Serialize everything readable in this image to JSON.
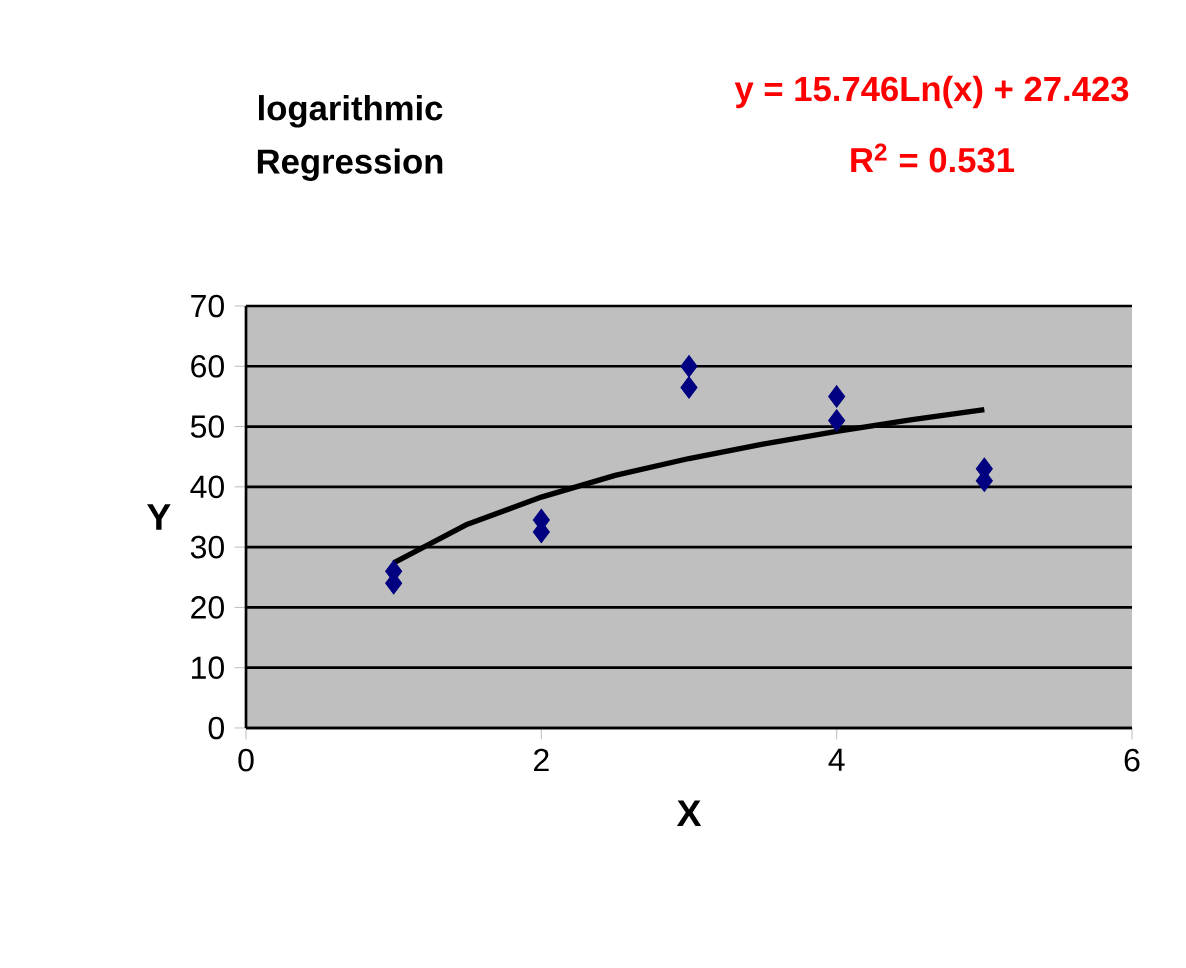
{
  "chart_data": {
    "type": "scatter",
    "title": "logarithmic Regression",
    "xlabel": "X",
    "ylabel": "Y",
    "annotations": [
      "y = 15.746Ln(x) + 27.423",
      "R$^{2}$ = 0.531"
    ],
    "xlim": [
      0,
      6
    ],
    "xticks": [
      0,
      2,
      4,
      6
    ],
    "ylim": [
      0,
      70
    ],
    "yticks": [
      0,
      10,
      20,
      30,
      40,
      50,
      60,
      70
    ],
    "grid": "y",
    "marker": "diamond",
    "series": [
      {
        "type": "scatter",
        "color": "#000080",
        "x": [
          1,
          1,
          2,
          2,
          3,
          3,
          4,
          4,
          5,
          5
        ],
        "values": [
          26,
          24,
          34.5,
          32.5,
          60,
          56.5,
          55,
          51,
          43,
          41
        ]
      },
      {
        "type": "line",
        "color": "#000000",
        "marker": "none",
        "x": [
          1,
          1.5,
          2,
          2.5,
          3,
          3.5,
          4,
          4.5,
          5
        ],
        "values": [
          27.4,
          33.8,
          38.3,
          41.9,
          44.7,
          47.1,
          49.2,
          51.1,
          52.8
        ]
      }
    ]
  }
}
